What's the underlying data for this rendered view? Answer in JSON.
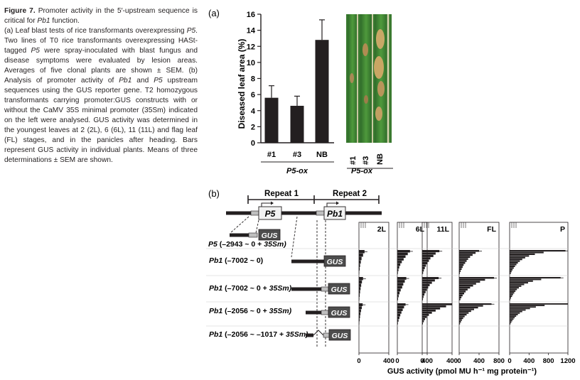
{
  "caption": {
    "label": "Figure 7.",
    "title_parts": [
      "Promoter activity in the 5′-upstream sequence is critical for ",
      "Pb1",
      " function."
    ],
    "body_parts": [
      "(a) Leaf blast tests of rice transformants overexpressing ",
      "P5",
      ". Two lines of T0 rice transformants overexpressing HASt-tagged ",
      "P5",
      " were spray-inoculated with blast fungus and disease symptoms were evaluated by lesion areas. Averages of five clonal plants are shown ± SEM. (b) Analysis of promoter activity of ",
      "Pb1",
      " and ",
      "P5",
      " upstream sequences using the GUS reporter gene. T2 homozygous transformants carrying promoter:GUS constructs with or without the CaMV 35S minimal promoter (35Sm) indicated on the left were analysed. GUS activity was determined in the youngest leaves at 2 (2L), 6 (6L), 11 (11L) and flag leaf (FL) stages, and in the panicles after heading. Bars represent GUS activity in individual plants. Means of three determinations ± SEM are shown."
    ]
  },
  "panel_a": {
    "label": "(a)",
    "photo_labels": [
      "#1",
      "#3",
      "NB"
    ],
    "photo_group_label": "P5-ox"
  },
  "panel_b": {
    "label": "(b)",
    "repeat1": "Repeat 1",
    "repeat2": "Repeat 2",
    "gene_p5": "P5",
    "gene_pb1": "Pb1",
    "gus": "GUS",
    "constructs": [
      {
        "gene": "P5",
        "region": " (–2943 ~ 0 + ",
        "tail": "35Sm)"
      },
      {
        "gene": "Pb1",
        "region": " (–7002 ~ 0)",
        "tail": ""
      },
      {
        "gene": "Pb1",
        "region": " (–7002 ~ 0 + ",
        "tail": "35Sm)"
      },
      {
        "gene": "Pb1",
        "region": " (–2056 ~ 0 + ",
        "tail": "35Sm)"
      },
      {
        "gene": "Pb1",
        "region": " (–2056 ~ –1017 + ",
        "tail": "35Sm)"
      }
    ]
  },
  "chart_data": [
    {
      "type": "bar",
      "categories": [
        "#1",
        "#3",
        "NB"
      ],
      "group_label": "P5-ox",
      "values": [
        5.6,
        4.6,
        12.8
      ],
      "errors": [
        1.5,
        1.2,
        2.5
      ],
      "ylabel": "Diseased leaf area (%)",
      "yticks": [
        0,
        2,
        4,
        6,
        8,
        10,
        12,
        14,
        16
      ],
      "ylim": [
        0,
        16
      ]
    },
    {
      "type": "bar",
      "orientation": "horizontal",
      "xlabel": "GUS activity (pmol MU h⁻¹ mg protein⁻¹)",
      "stages": [
        {
          "name": "2L",
          "max": 400,
          "ticks": [
            0,
            400
          ]
        },
        {
          "name": "6L",
          "max": 400,
          "ticks": [
            0,
            400
          ]
        },
        {
          "name": "11L",
          "max": 400,
          "ticks": [
            0,
            400
          ]
        },
        {
          "name": "FL",
          "max": 800,
          "ticks": [
            0,
            400,
            800
          ]
        },
        {
          "name": "P",
          "max": 1200,
          "ticks": [
            0,
            400,
            800,
            1200
          ]
        }
      ],
      "rows": [
        {
          "construct": "P5 (–2943 ~ 0 + 35Sm)",
          "values": [
            [
              0,
              0,
              0,
              0,
              0,
              0
            ],
            [
              0,
              0,
              0,
              0,
              0,
              0
            ],
            [
              0,
              0,
              0,
              0,
              0,
              0
            ],
            [
              0,
              0,
              0,
              0,
              0,
              0
            ],
            [
              0,
              0,
              0,
              0,
              0,
              0
            ]
          ]
        },
        {
          "construct": "Pb1 (–7002 ~ 0)",
          "values": [
            [
              75,
              55,
              35,
              25,
              15,
              10,
              5
            ],
            [
              170,
              140,
              110,
              85,
              60,
              40,
              25,
              15,
              8
            ],
            [
              230,
              180,
              150,
              110,
              90,
              70,
              50,
              35,
              22,
              12
            ],
            [
              400,
              330,
              270,
              220,
              180,
              150,
              120,
              90,
              70,
              50,
              30,
              15
            ],
            [
              1150,
              700,
              520,
              400,
              320,
              260,
              210,
              170,
              140,
              110,
              85,
              60,
              40,
              25
            ]
          ]
        },
        {
          "construct": "Pb1 (–7002 ~ 0 + 35Sm)",
          "values": [
            [
              55,
              40,
              30,
              22,
              15,
              10,
              6
            ],
            [
              120,
              100,
              80,
              65,
              45,
              30,
              18,
              10
            ],
            [
              220,
              170,
              130,
              100,
              80,
              60,
              45,
              30,
              18,
              10
            ],
            [
              700,
              520,
              420,
              340,
              280,
              220,
              170,
              130,
              100,
              70,
              45,
              25
            ],
            [
              1050,
              650,
              480,
              380,
              300,
              240,
              190,
              150,
              120,
              95,
              70,
              50,
              30,
              15
            ]
          ]
        },
        {
          "construct": "Pb1 (–2056 ~ 0 + 35Sm)",
          "values": [
            [
              50,
              38,
              28,
              20,
              14,
              9,
              5
            ],
            [
              110,
              90,
              72,
              55,
              40,
              28,
              16,
              8
            ],
            [
              460,
              320,
              240,
              180,
              130,
              90,
              60,
              38,
              22,
              10
            ],
            [
              650,
              480,
              380,
              300,
              240,
              190,
              150,
              110,
              80,
              55,
              35,
              18
            ],
            [
              1200,
              720,
              540,
              420,
              330,
              260,
              210,
              170,
              135,
              105,
              80,
              55,
              35,
              18
            ]
          ]
        },
        {
          "construct": "Pb1 (–2056 ~ –1017 + 35Sm)",
          "values": [
            [
              0,
              0,
              0,
              0,
              0,
              0
            ],
            [
              0,
              0,
              0,
              0,
              0,
              0
            ],
            [
              0,
              0,
              0,
              0,
              0,
              0
            ],
            [
              0,
              0,
              0,
              0,
              0,
              0
            ],
            [
              0,
              0,
              0,
              0,
              0,
              0
            ]
          ]
        }
      ]
    }
  ]
}
